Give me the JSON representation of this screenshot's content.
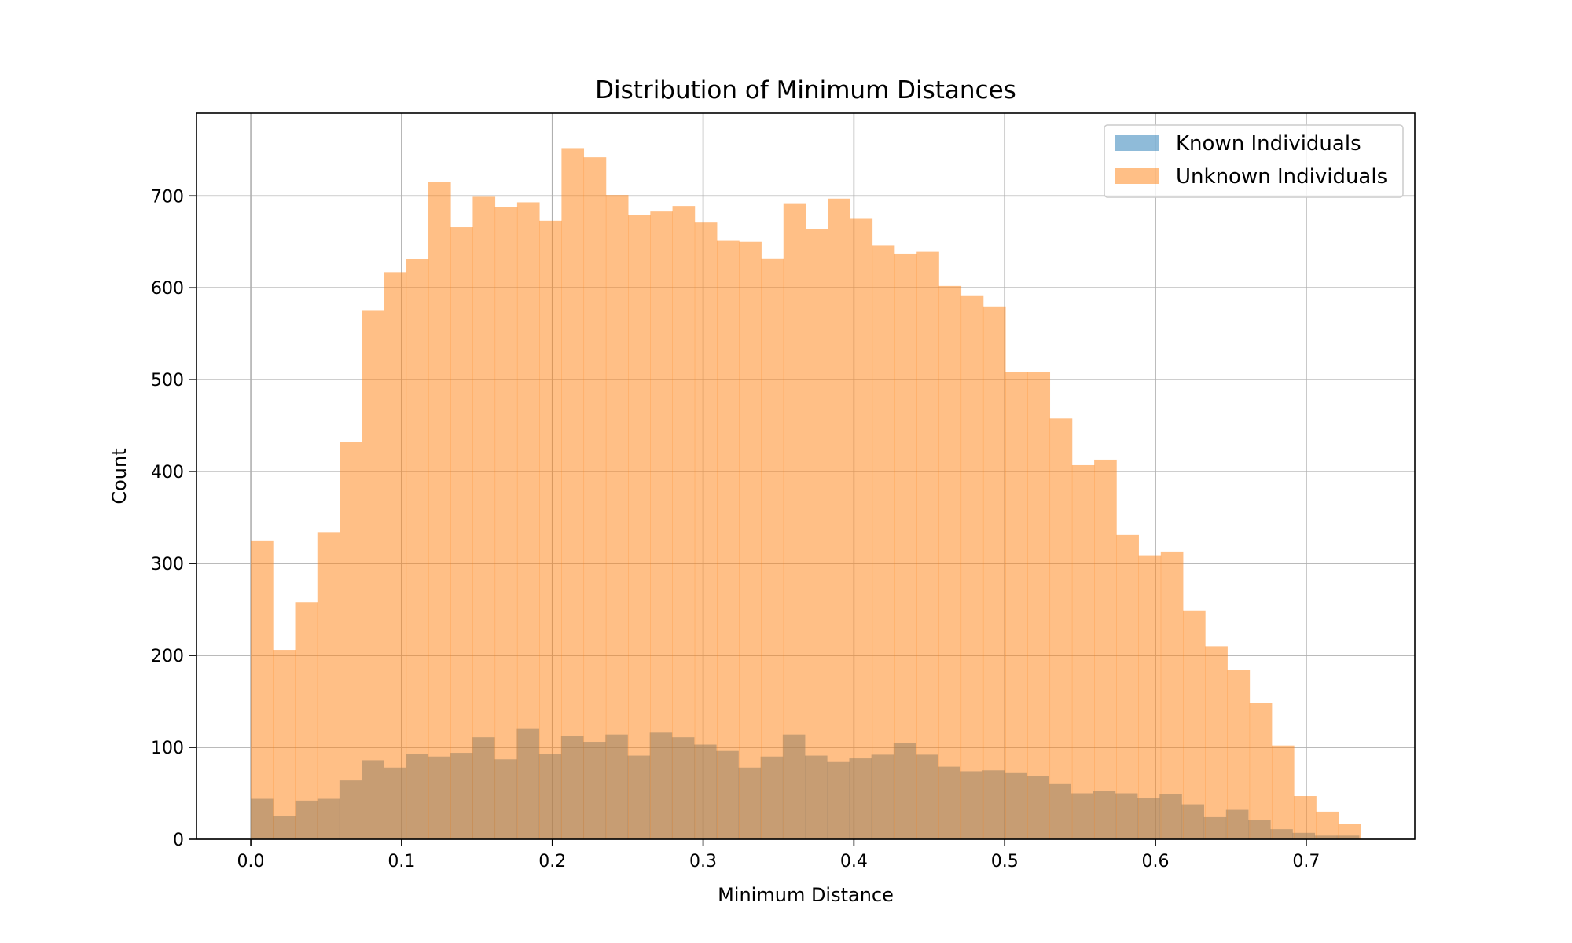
{
  "chart_data": {
    "type": "bar",
    "title": "Distribution of Minimum Distances",
    "xlabel": "Minimum Distance",
    "ylabel": "Count",
    "xlim": [
      -0.036,
      0.772
    ],
    "ylim": [
      0,
      790
    ],
    "xticks": [
      0.0,
      0.1,
      0.2,
      0.3,
      0.4,
      0.5,
      0.6,
      0.7
    ],
    "xtick_labels": [
      "0.0",
      "0.1",
      "0.2",
      "0.3",
      "0.4",
      "0.5",
      "0.6",
      "0.7"
    ],
    "yticks": [
      0,
      100,
      200,
      300,
      400,
      500,
      600,
      700
    ],
    "ytick_labels": [
      "0",
      "100",
      "200",
      "300",
      "400",
      "500",
      "600",
      "700"
    ],
    "grid": true,
    "legend_position": "top-right",
    "bin_width": 0.01472,
    "series": [
      {
        "name": "Known Individuals",
        "color": "#1f77b4",
        "opacity": 0.5,
        "bin_start": 0.0,
        "bin_width": 0.0147,
        "values": [
          44,
          25,
          42,
          44,
          64,
          86,
          78,
          93,
          90,
          94,
          111,
          87,
          120,
          93,
          112,
          106,
          114,
          91,
          116,
          111,
          103,
          96,
          78,
          90,
          114,
          91,
          84,
          88,
          92,
          105,
          92,
          79,
          74,
          75,
          72,
          69,
          60,
          50,
          53,
          50,
          45,
          49,
          38,
          24,
          32,
          21,
          11,
          7,
          4,
          4
        ]
      },
      {
        "name": "Unknown Individuals",
        "color": "#ff7f0e",
        "opacity": 0.5,
        "bin_start": 0.0,
        "bin_width": 0.01472,
        "values": [
          325,
          206,
          258,
          334,
          432,
          575,
          617,
          631,
          715,
          666,
          699,
          688,
          693,
          673,
          752,
          742,
          701,
          679,
          683,
          689,
          671,
          651,
          650,
          632,
          692,
          664,
          697,
          675,
          646,
          637,
          639,
          602,
          591,
          579,
          508,
          508,
          458,
          407,
          413,
          331,
          309,
          313,
          249,
          210,
          184,
          148,
          102,
          47,
          30,
          17
        ]
      }
    ]
  }
}
